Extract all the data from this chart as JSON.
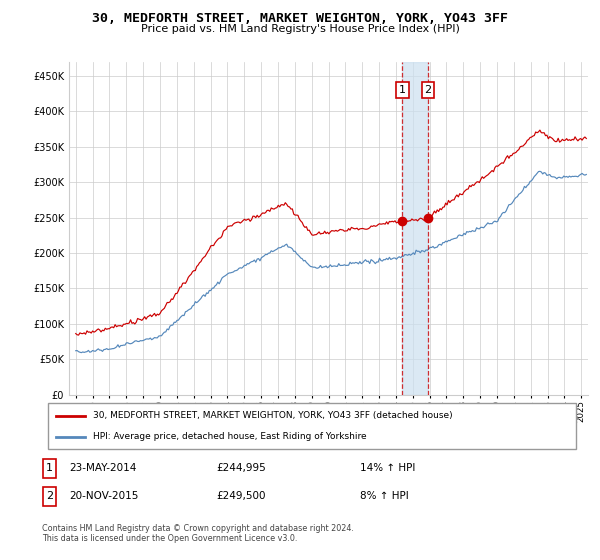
{
  "title": "30, MEDFORTH STREET, MARKET WEIGHTON, YORK, YO43 3FF",
  "subtitle": "Price paid vs. HM Land Registry's House Price Index (HPI)",
  "ylim": [
    0,
    470000
  ],
  "yticks": [
    0,
    50000,
    100000,
    150000,
    200000,
    250000,
    300000,
    350000,
    400000,
    450000
  ],
  "legend_line1": "30, MEDFORTH STREET, MARKET WEIGHTON, YORK, YO43 3FF (detached house)",
  "legend_line2": "HPI: Average price, detached house, East Riding of Yorkshire",
  "transaction1_date": "23-MAY-2014",
  "transaction1_price": "£244,995",
  "transaction1_hpi": "14% ↑ HPI",
  "transaction2_date": "20-NOV-2015",
  "transaction2_price": "£249,500",
  "transaction2_hpi": "8% ↑ HPI",
  "footnote": "Contains HM Land Registry data © Crown copyright and database right 2024.\nThis data is licensed under the Open Government Licence v3.0.",
  "line_color_red": "#cc0000",
  "line_color_blue": "#5588bb",
  "vline_color": "#cc0000",
  "vband_color": "#cce0f0",
  "grid_color": "#cccccc",
  "transaction1_x": 2014.38,
  "transaction2_x": 2015.9,
  "transaction1_y": 244995,
  "transaction2_y": 249500,
  "xlim_left": 1994.6,
  "xlim_right": 2025.4
}
